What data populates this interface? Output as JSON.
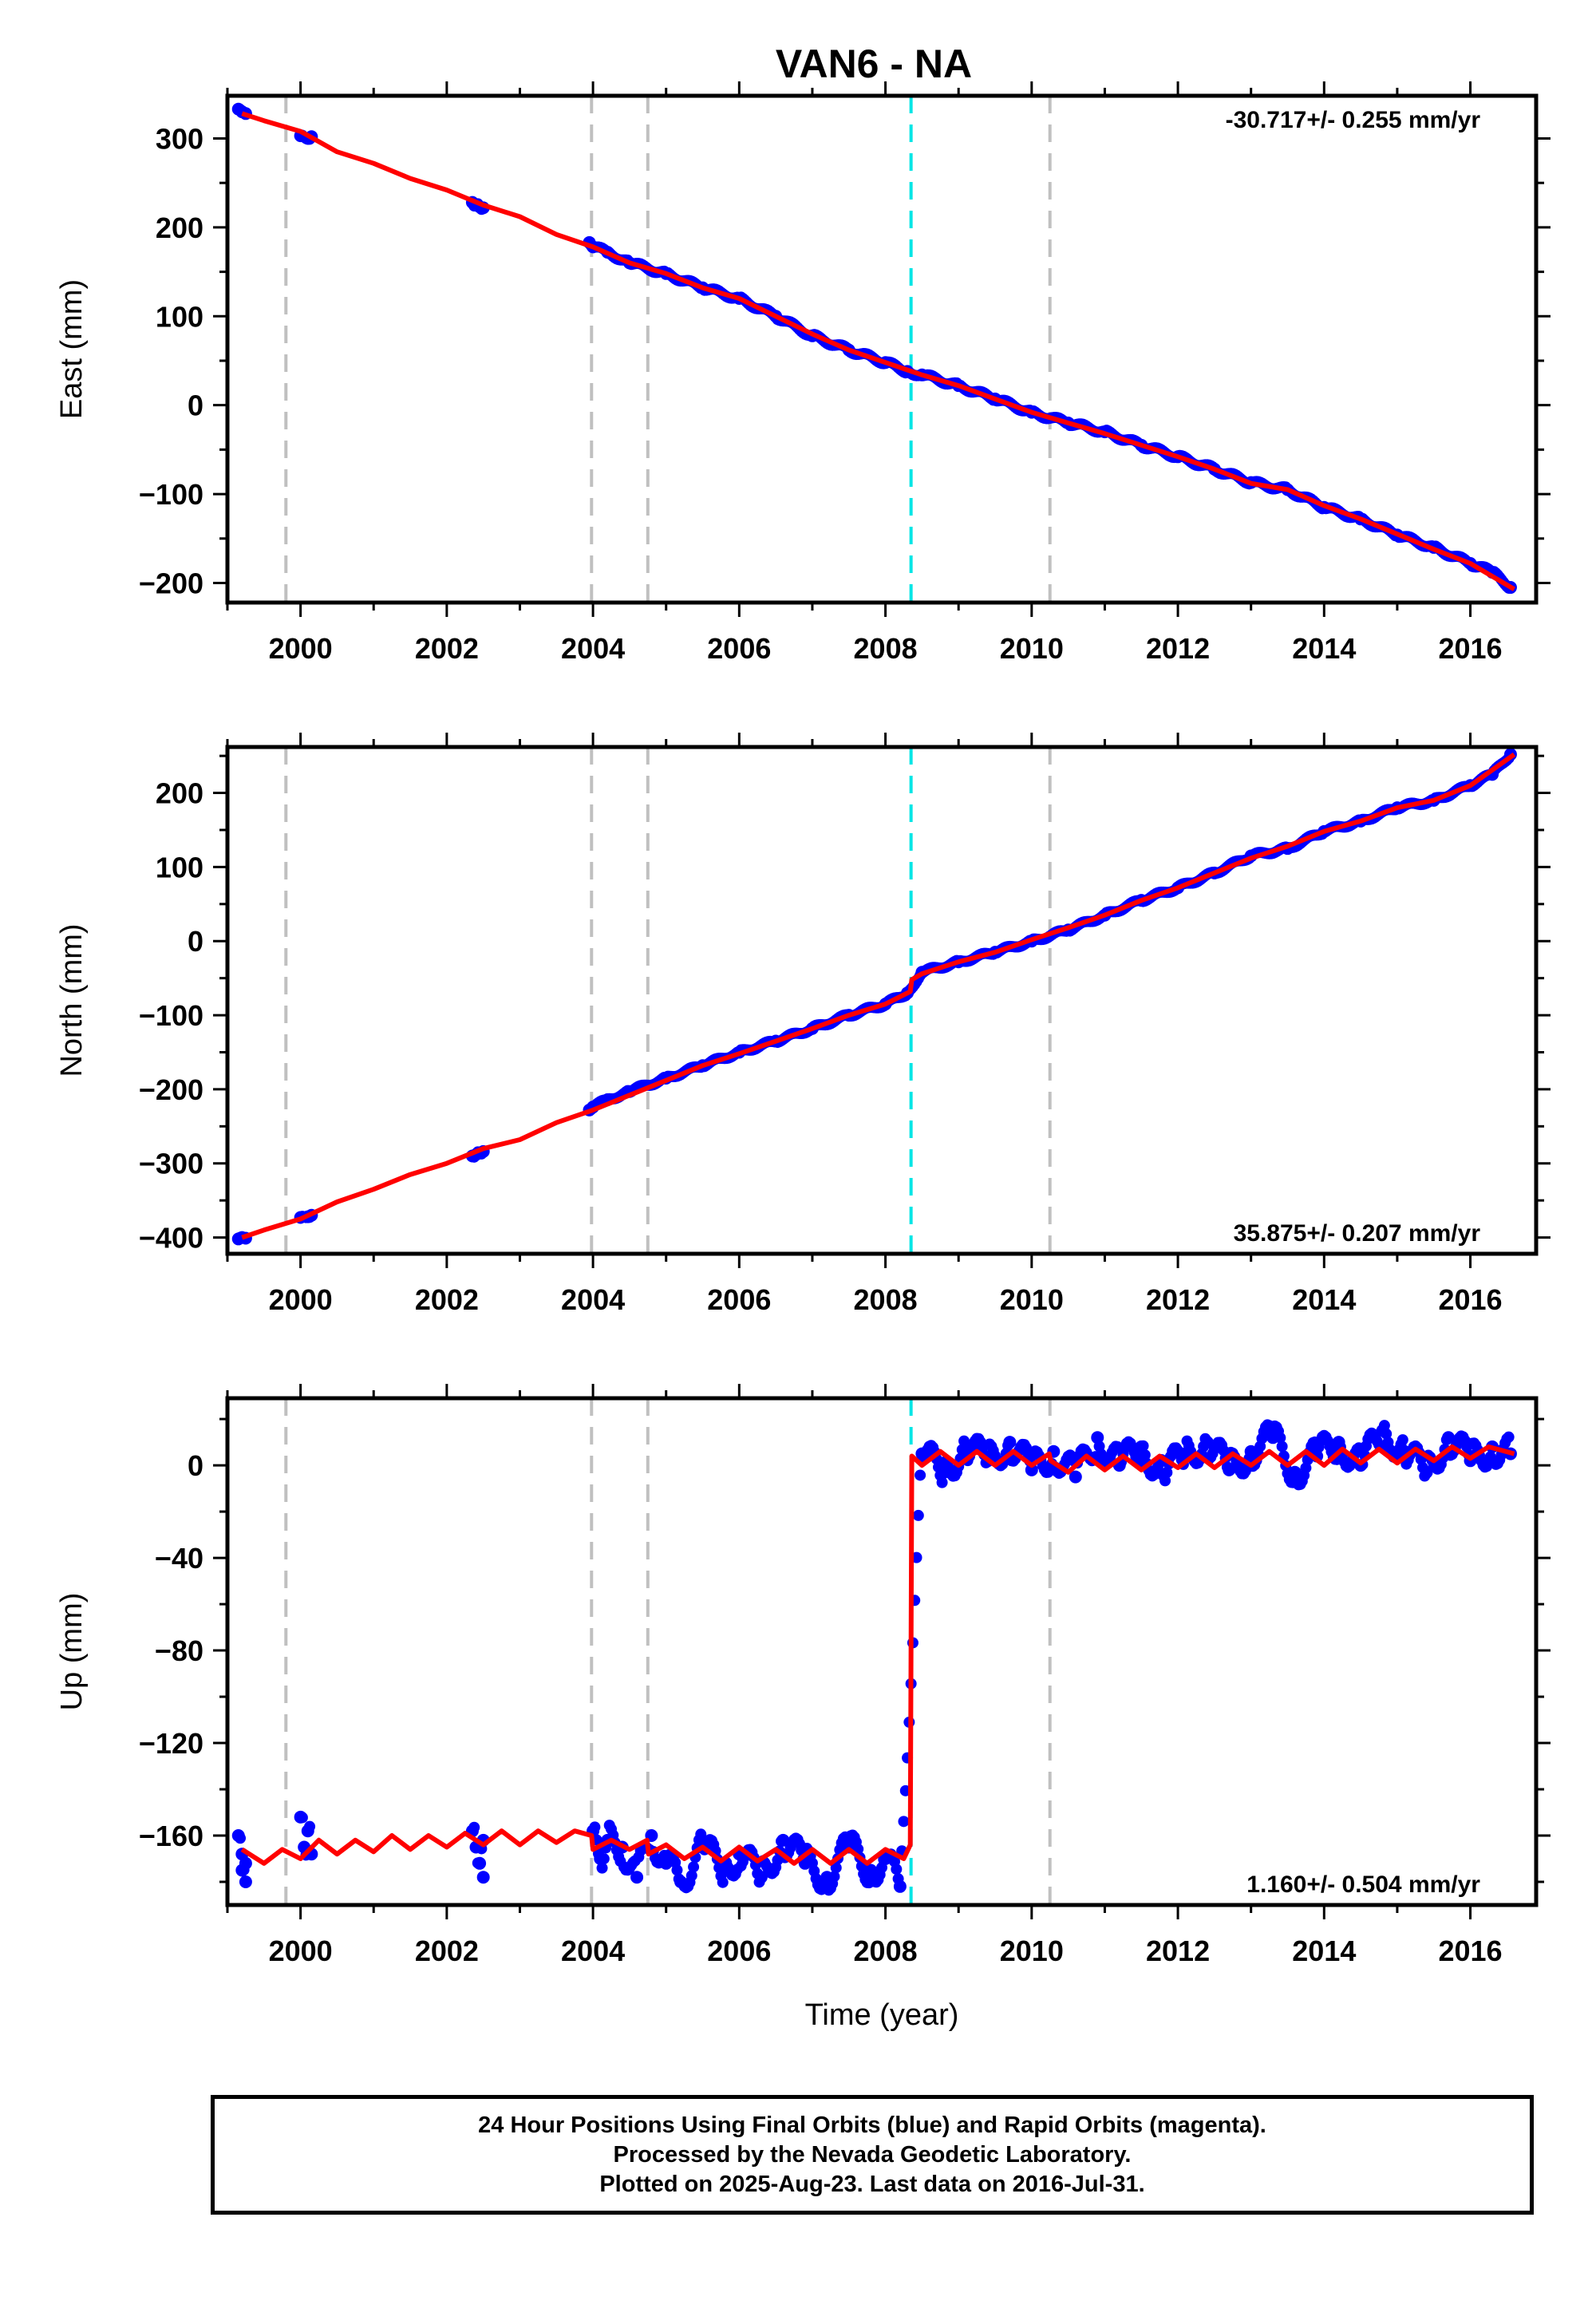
{
  "title": "VAN6 - NA",
  "colors": {
    "data_points": "#0000ff",
    "model_line": "#ff0000",
    "equipment_change_lines": "#c0c0c0",
    "earthquake_line": "#00e5e5",
    "frame": "#000000"
  },
  "chart_data": [
    {
      "type": "scatter",
      "component": "East",
      "ylabel": "East (mm)",
      "xlabel": "",
      "xlim": [
        1999.0,
        2016.9
      ],
      "ylim": [
        -222,
        348
      ],
      "x_ticks": [
        2000,
        2002,
        2004,
        2006,
        2008,
        2010,
        2012,
        2014,
        2016
      ],
      "y_ticks": [
        -200,
        -100,
        0,
        100,
        200,
        300
      ],
      "rate_text": "-30.717+/- 0.255 mm/yr",
      "rate_position": "top-right",
      "series": [
        {
          "name": "",
          "kind": "points",
          "color": "#0000ff",
          "x": [
            1999.15,
            1999.2,
            1999.25,
            2000.0,
            2000.1,
            2000.15,
            2002.35,
            2002.4,
            2002.45,
            2002.5,
            2003.95,
            2004.0,
            2004.2,
            2004.5,
            2005.0,
            2005.5,
            2006.0,
            2006.5,
            2007.0,
            2007.5,
            2008.0,
            2008.3,
            2008.5,
            2009.0,
            2009.5,
            2010.0,
            2010.5,
            2011.0,
            2011.5,
            2012.0,
            2012.5,
            2013.0,
            2013.5,
            2014.0,
            2014.5,
            2015.0,
            2015.5,
            2016.0,
            2016.3,
            2016.55
          ],
          "y": [
            333,
            330,
            328,
            303,
            300,
            302,
            228,
            225,
            223,
            222,
            183,
            178,
            172,
            160,
            148,
            132,
            120,
            100,
            78,
            62,
            48,
            38,
            34,
            22,
            7,
            -8,
            -20,
            -30,
            -45,
            -58,
            -72,
            -87,
            -95,
            -115,
            -128,
            -146,
            -160,
            -178,
            -188,
            -205
          ]
        },
        {
          "name": "",
          "kind": "line",
          "color": "#ff0000",
          "x": [
            1999.2,
            1999.5,
            2000.0,
            2000.5,
            2001.0,
            2001.5,
            2002.0,
            2002.5,
            2003.0,
            2003.5,
            2004.0,
            2004.5,
            2005.0,
            2005.5,
            2006.0,
            2006.5,
            2007.0,
            2007.5,
            2008.0,
            2008.5,
            2009.0,
            2009.5,
            2010.0,
            2010.5,
            2011.0,
            2011.5,
            2012.0,
            2012.5,
            2013.0,
            2013.5,
            2014.0,
            2014.5,
            2015.0,
            2015.5,
            2016.0,
            2016.6
          ],
          "y": [
            328,
            320,
            308,
            285,
            272,
            255,
            242,
            225,
            212,
            192,
            178,
            160,
            148,
            132,
            120,
            100,
            80,
            62,
            48,
            34,
            22,
            7,
            -8,
            -20,
            -32,
            -45,
            -58,
            -72,
            -88,
            -95,
            -113,
            -128,
            -145,
            -162,
            -178,
            -207
          ]
        }
      ],
      "vertical_lines": [
        {
          "x": 1999.8,
          "kind": "equipment"
        },
        {
          "x": 2003.98,
          "kind": "equipment"
        },
        {
          "x": 2004.75,
          "kind": "equipment"
        },
        {
          "x": 2008.35,
          "kind": "earthquake"
        },
        {
          "x": 2010.25,
          "kind": "equipment"
        }
      ]
    },
    {
      "type": "scatter",
      "component": "North",
      "ylabel": "North (mm)",
      "xlabel": "",
      "xlim": [
        1999.0,
        2016.9
      ],
      "ylim": [
        -422,
        262
      ],
      "x_ticks": [
        2000,
        2002,
        2004,
        2006,
        2008,
        2010,
        2012,
        2014,
        2016
      ],
      "y_ticks": [
        -400,
        -300,
        -200,
        -100,
        0,
        100,
        200
      ],
      "rate_text": "35.875+/- 0.207 mm/yr",
      "rate_position": "bottom-right",
      "series": [
        {
          "name": "",
          "kind": "points",
          "color": "#0000ff",
          "x": [
            1999.15,
            1999.2,
            1999.25,
            2000.0,
            2000.1,
            2000.15,
            2002.35,
            2002.4,
            2002.45,
            2002.5,
            2003.95,
            2004.0,
            2004.2,
            2004.5,
            2005.0,
            2005.5,
            2006.0,
            2006.5,
            2007.0,
            2007.5,
            2008.0,
            2008.3,
            2008.5,
            2009.0,
            2009.5,
            2010.0,
            2010.5,
            2011.0,
            2011.5,
            2012.0,
            2012.5,
            2013.0,
            2013.5,
            2014.0,
            2014.5,
            2015.0,
            2015.5,
            2016.0,
            2016.3,
            2016.55
          ],
          "y": [
            -402,
            -400,
            -401,
            -373,
            -372,
            -370,
            -290,
            -288,
            -286,
            -284,
            -228,
            -224,
            -214,
            -203,
            -185,
            -168,
            -150,
            -135,
            -118,
            -100,
            -85,
            -70,
            -42,
            -28,
            -15,
            0,
            15,
            35,
            55,
            72,
            92,
            115,
            125,
            148,
            162,
            180,
            190,
            210,
            225,
            252
          ]
        },
        {
          "name": "",
          "kind": "line",
          "color": "#ff0000",
          "x": [
            1999.2,
            1999.5,
            2000.0,
            2000.5,
            2001.0,
            2001.5,
            2002.0,
            2002.5,
            2003.0,
            2003.5,
            2004.0,
            2004.5,
            2005.0,
            2005.5,
            2006.0,
            2006.5,
            2007.0,
            2007.5,
            2008.0,
            2008.34,
            2008.36,
            2008.5,
            2009.0,
            2009.5,
            2010.0,
            2010.5,
            2011.0,
            2011.5,
            2012.0,
            2012.5,
            2013.0,
            2013.5,
            2014.0,
            2014.5,
            2015.0,
            2015.5,
            2016.0,
            2016.6
          ],
          "y": [
            -400,
            -390,
            -375,
            -352,
            -335,
            -315,
            -300,
            -280,
            -268,
            -245,
            -228,
            -208,
            -188,
            -168,
            -152,
            -135,
            -118,
            -100,
            -85,
            -68,
            -52,
            -44,
            -28,
            -15,
            2,
            18,
            35,
            55,
            72,
            92,
            112,
            128,
            148,
            162,
            180,
            190,
            210,
            252
          ]
        }
      ],
      "vertical_lines": [
        {
          "x": 1999.8,
          "kind": "equipment"
        },
        {
          "x": 2003.98,
          "kind": "equipment"
        },
        {
          "x": 2004.75,
          "kind": "equipment"
        },
        {
          "x": 2008.35,
          "kind": "earthquake"
        },
        {
          "x": 2010.25,
          "kind": "equipment"
        }
      ]
    },
    {
      "type": "scatter",
      "component": "Up",
      "ylabel": "Up (mm)",
      "xlabel": "Time (year)",
      "xlim": [
        1999.0,
        2016.9
      ],
      "ylim": [
        -190,
        29
      ],
      "x_ticks": [
        2000,
        2002,
        2004,
        2006,
        2008,
        2010,
        2012,
        2014,
        2016
      ],
      "y_ticks": [
        -160,
        -120,
        -80,
        -40,
        0
      ],
      "rate_text": "1.160+/- 0.504 mm/yr",
      "rate_position": "bottom-right",
      "series": [
        {
          "name": "",
          "kind": "points",
          "color": "#0000ff",
          "x": [
            1999.15,
            1999.2,
            1999.2,
            1999.25,
            1999.25,
            2000.0,
            2000.05,
            2000.1,
            2000.15,
            2002.35,
            2002.4,
            2002.45,
            2002.5,
            2002.5,
            2004.0,
            2004.1,
            2004.2,
            2004.4,
            2004.6,
            2004.8,
            2005.0,
            2005.2,
            2005.5,
            2005.8,
            2006.0,
            2006.3,
            2006.6,
            2006.9,
            2007.2,
            2007.5,
            2007.8,
            2008.0,
            2008.2,
            2008.5,
            2008.8,
            2009.1,
            2009.4,
            2009.7,
            2010.0,
            2010.3,
            2010.6,
            2010.9,
            2011.2,
            2011.5,
            2011.8,
            2012.1,
            2012.4,
            2012.7,
            2013.0,
            2013.3,
            2013.6,
            2013.9,
            2014.2,
            2014.5,
            2014.8,
            2015.1,
            2015.4,
            2015.7,
            2016.0,
            2016.3,
            2016.55
          ],
          "y": [
            -160,
            -168,
            -175,
            -172,
            -180,
            -152,
            -165,
            -158,
            -168,
            -158,
            -165,
            -172,
            -162,
            -178,
            -158,
            -170,
            -162,
            -165,
            -178,
            -160,
            -172,
            -180,
            -165,
            -175,
            -168,
            -178,
            -162,
            -172,
            -178,
            -165,
            -175,
            -170,
            -182,
            5,
            -3,
            8,
            2,
            10,
            -2,
            6,
            -5,
            12,
            0,
            8,
            -4,
            5,
            10,
            -2,
            6,
            12,
            -3,
            4,
            10,
            0,
            15,
            6,
            -3,
            12,
            2,
            8,
            5
          ]
        },
        {
          "name": "",
          "kind": "line",
          "color": "#ff0000",
          "x": [
            1999.2,
            1999.5,
            1999.75,
            2000.0,
            2000.25,
            2000.5,
            2000.75,
            2001.0,
            2001.25,
            2001.5,
            2001.75,
            2002.0,
            2002.25,
            2002.5,
            2002.75,
            2003.0,
            2003.25,
            2003.5,
            2003.75,
            2003.98,
            2004.0,
            2004.25,
            2004.5,
            2004.74,
            2004.76,
            2005.0,
            2005.25,
            2005.5,
            2005.75,
            2006.0,
            2006.25,
            2006.5,
            2006.75,
            2007.0,
            2007.25,
            2007.5,
            2007.75,
            2008.0,
            2008.25,
            2008.34,
            2008.36,
            2008.5,
            2008.75,
            2009.0,
            2009.25,
            2009.5,
            2009.75,
            2010.0,
            2010.24,
            2010.26,
            2010.5,
            2010.75,
            2011.0,
            2011.25,
            2011.5,
            2011.75,
            2012.0,
            2012.25,
            2012.5,
            2012.75,
            2013.0,
            2013.25,
            2013.5,
            2013.75,
            2014.0,
            2014.25,
            2014.5,
            2014.75,
            2015.0,
            2015.25,
            2015.5,
            2015.75,
            2016.0,
            2016.25,
            2016.6
          ],
          "y": [
            -166,
            -172,
            -166,
            -170,
            -162,
            -168,
            -162,
            -167,
            -160,
            -166,
            -160,
            -165,
            -159,
            -164,
            -158,
            -164,
            -158,
            -163,
            -158,
            -160,
            -166,
            -162,
            -166,
            -162,
            -168,
            -164,
            -170,
            -165,
            -171,
            -165,
            -171,
            -166,
            -172,
            -166,
            -172,
            -166,
            -172,
            -166,
            -170,
            -164,
            4,
            0,
            6,
            0,
            6,
            0,
            6,
            0,
            5,
            2,
            -3,
            4,
            -2,
            4,
            -2,
            4,
            -1,
            5,
            -1,
            5,
            0,
            6,
            0,
            6,
            0,
            7,
            1,
            7,
            1,
            7,
            2,
            8,
            3,
            8,
            5
          ]
        }
      ],
      "vertical_lines": [
        {
          "x": 1999.8,
          "kind": "equipment"
        },
        {
          "x": 2003.98,
          "kind": "equipment"
        },
        {
          "x": 2004.75,
          "kind": "equipment"
        },
        {
          "x": 2008.35,
          "kind": "earthquake"
        },
        {
          "x": 2010.25,
          "kind": "equipment"
        }
      ]
    }
  ],
  "footer": {
    "line1": "24 Hour Positions Using Final Orbits (blue) and Rapid Orbits (magenta).",
    "line2": "Processed by the Nevada Geodetic Laboratory.",
    "line3": "Plotted on 2025-Aug-23. Last data on 2016-Jul-31."
  }
}
